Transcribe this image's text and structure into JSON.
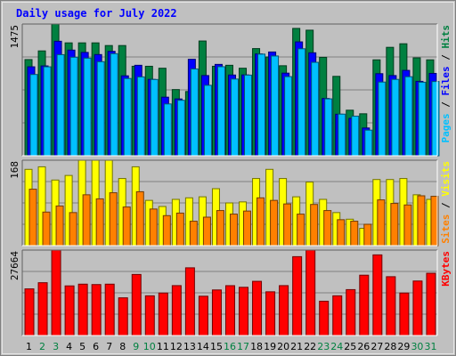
{
  "chart_data": {
    "type": "bar",
    "title": "Daily usage for July 2022",
    "categories": [
      "1",
      "2",
      "3",
      "4",
      "5",
      "6",
      "7",
      "8",
      "9",
      "10",
      "11",
      "12",
      "13",
      "14",
      "15",
      "16",
      "17",
      "18",
      "19",
      "20",
      "21",
      "22",
      "23",
      "24",
      "25",
      "26",
      "27",
      "28",
      "29",
      "30",
      "31"
    ],
    "weekend_days": [
      "2",
      "3",
      "9",
      "10",
      "16",
      "17",
      "23",
      "24",
      "30",
      "31"
    ],
    "panels": [
      {
        "id": "hits",
        "y_max_label": "1475",
        "ylim": [
          0,
          1475
        ],
        "legend": [
          "Pages",
          "Files",
          "Hits"
        ],
        "series": [
          {
            "name": "Hits",
            "color": "#008040",
            "values": [
              1077,
              1174,
              1475,
              1264,
              1264,
              1264,
              1234,
              1234,
              1002,
              1002,
              980,
              741,
              719,
              1285,
              1002,
              1013,
              980,
              1200,
              1106,
              1008,
              1426,
              1406,
              1102,
              889,
              510,
              470,
              1074,
              1214,
              1254,
              1096,
              1074
            ]
          },
          {
            "name": "Files",
            "color": "#0000ff",
            "values": [
              996,
              1006,
              1282,
              1183,
              1157,
              1133,
              1169,
              895,
              1013,
              855,
              656,
              636,
              1080,
              898,
              1023,
              904,
              905,
              1140,
              1162,
              925,
              1275,
              1153,
              641,
              465,
              419,
              311,
              919,
              898,
              956,
              833,
              922
            ]
          },
          {
            "name": "Pages",
            "color": "#00c0ff",
            "values": [
              910,
              996,
              1132,
              1103,
              1093,
              1053,
              1143,
              865,
              883,
              854,
              580,
              621,
              972,
              789,
              997,
              859,
              903,
              1138,
              1117,
              886,
              1198,
              1046,
              637,
              466,
              443,
              287,
              825,
              855,
              885,
              823,
              831
            ]
          }
        ]
      },
      {
        "id": "visits",
        "y_max_label": "168",
        "ylim": [
          0,
          168
        ],
        "legend": [
          "Sites",
          "Visits"
        ],
        "series": [
          {
            "name": "Visits",
            "color": "#ffff00",
            "values": [
              150,
              155,
              129,
              138,
              168,
              168,
              168,
              132,
              155,
              89,
              77,
              91,
              94,
              96,
              112,
              84,
              86,
              132,
              150,
              132,
              96,
              125,
              91,
              65,
              52,
              34,
              130,
              130,
              132,
              100,
              91
            ]
          },
          {
            "name": "Sites",
            "color": "#ff8000",
            "values": [
              111,
              66,
              78,
              65,
              100,
              92,
              104,
              76,
              106,
              72,
              59,
              64,
              48,
              56,
              69,
              62,
              68,
              94,
              89,
              82,
              62,
              81,
              69,
              51,
              48,
              42,
              90,
              83,
              80,
              98,
              97
            ]
          }
        ]
      },
      {
        "id": "kbytes",
        "y_max_label": "27664",
        "ylim": [
          0,
          27664
        ],
        "legend": [
          "KBytes"
        ],
        "series": [
          {
            "name": "KBytes",
            "color": "#ff0000",
            "values": [
              15104,
              17104,
              27664,
              16072,
              16632,
              16504,
              16632,
              12208,
              19772,
              12860,
              13760,
              16160,
              21928,
              12728,
              14760,
              16144,
              15616,
              17552,
              14160,
              16160,
              25536,
              27664,
              11112,
              12860,
              14864,
              19536,
              26116,
              19048,
              13760,
              17656,
              20160
            ]
          }
        ]
      }
    ]
  }
}
